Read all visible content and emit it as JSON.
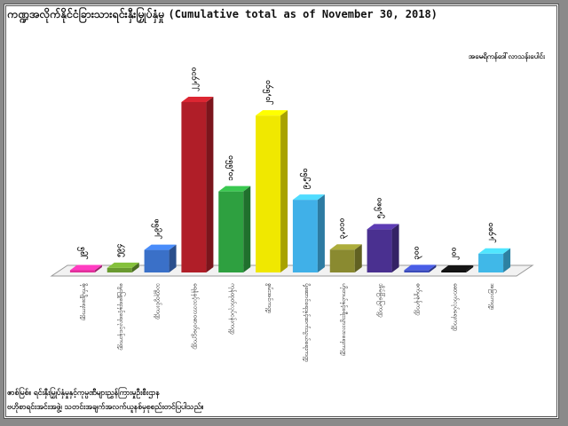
{
  "chart_data": {
    "type": "bar",
    "title": "ကဏ္ဍအလိုက်နိုင်ငံခြားသားရင်းနှီးမြှုပ်နှံမှု",
    "subtitle": "(Cumulative total as of November 30, 2018)",
    "unit": "အမေရိကန်ဒေါ်လာသန်းပေါင်း",
    "categories": [
      "စိုက်ပျိုးရေးကဏ္ဍ",
      "မွေးမြူရေးနှင့်ရေလုပ်ငန်းကဏ္ဍ",
      "သတ္တုတွင်းကဏ္ဍ",
      "ရေနံနှင့်သဘာဝဓာတ်ငွေ့ကဏ္ဍ",
      "ကုန်ထုတ်လုပ်ငန်းကဏ္ဍ",
      "စွမ်းအင်ကဏ္ဍ",
      "ပို့ဆောင်ရေးနှင့်ဆက်သွယ်ရေးကဏ္ဍ",
      "ဟိုတယ်နှင့်ခရီးသွားလာရေးကဏ္ဍ",
      "အိမ်ခြံမြေကဏ္ဍ",
      "စက်မှုဇုန်ကဏ္ဍ",
      "ဆောက်လုပ်ရေးကဏ္ဍ",
      "အခြားကဏ္ဍ"
    ],
    "values": [
      296,
      594,
      2968,
      22410,
      10660,
      20640,
      9560,
      3010,
      5680,
      300,
      200,
      2480
    ],
    "labels": [
      "၂၉၆",
      "၅၉၄",
      "၂,၉၆၈",
      "၂၂,၄၁၀",
      "၁၀,၆၆၀",
      "၂၀,၆၄၀",
      "၉,၅၆၀",
      "၃,၀၁၀",
      "၅,၆၈၀",
      "၃၀၀",
      "၂၀၀",
      "၂,၄၈၀"
    ],
    "colors": [
      "#e0309a",
      "#6a9a30",
      "#3a70c8",
      "#b01e28",
      "#2ea040",
      "#f0e800",
      "#40b0e8",
      "#8a8a30",
      "#4a3090",
      "#3a4ab8",
      "#111111",
      "#40b8e8"
    ],
    "ylim": [
      0,
      22410
    ],
    "grid": false,
    "legend": "none"
  },
  "footer": {
    "line1": "ဇာစ်မြစ်။ ရင်းနှီးမြှုပ်နှံမှုနှင့်ကုမ္ပဏီများညွှန်ကြားမှုဦးစီးဌာန",
    "line2": "ဗဟိုစာရင်းအင်းအဖွဲ့၊ သတင်းအချက်အလက်ယူနစ်မှစုစည်းတင်ပြပါသည်။"
  }
}
